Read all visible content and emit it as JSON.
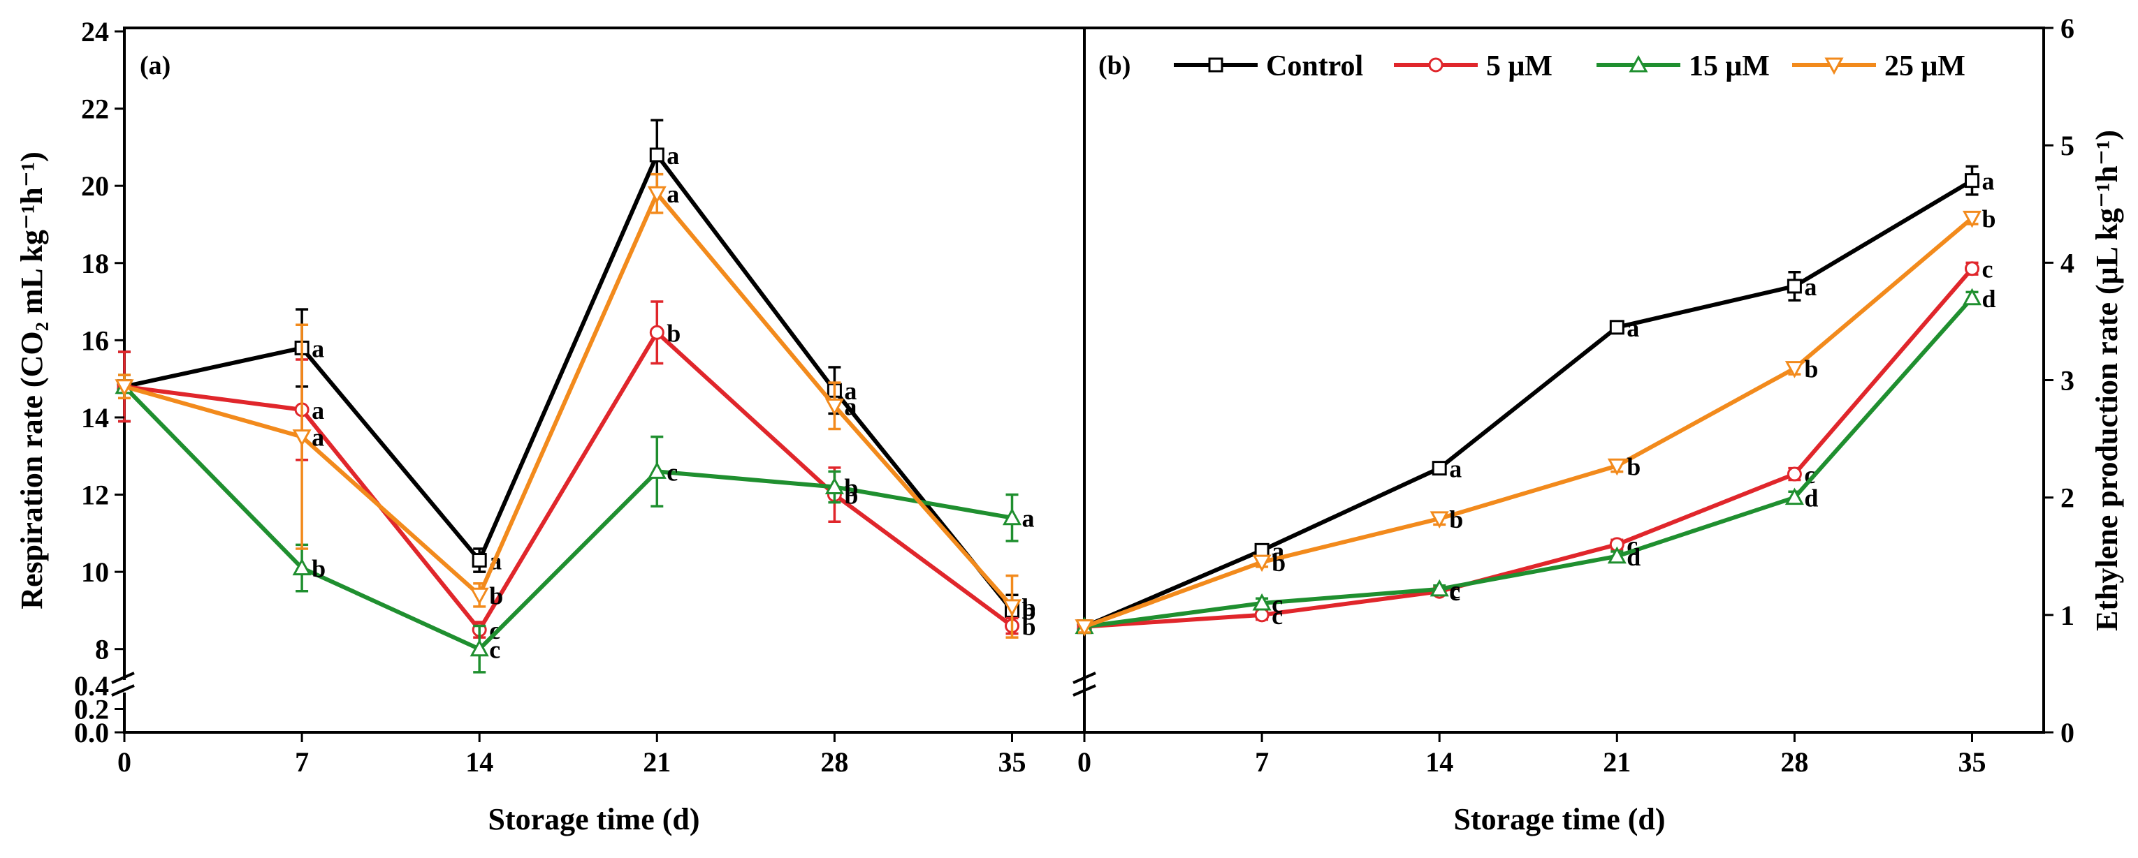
{
  "panels": [
    {
      "label": "(a)",
      "xlabel": "Storage time (d)",
      "ylabel": "Respiration rate (CO₂ mL kg⁻¹h⁻¹)",
      "axis_side": "left",
      "x_ticks": [
        "0",
        "7",
        "14",
        "21",
        "28",
        "35"
      ],
      "y_ticks": [
        "8",
        "10",
        "12",
        "14",
        "16",
        "18",
        "20",
        "22",
        "24"
      ],
      "y_ticks_lower": [
        "0.0",
        "0.2",
        "0.4"
      ]
    },
    {
      "label": "(b)",
      "xlabel": "Storage time (d)",
      "ylabel": "Ethylene production rate (μL kg⁻¹h⁻¹)",
      "axis_side": "right",
      "x_ticks": [
        "0",
        "7",
        "14",
        "21",
        "28",
        "35"
      ],
      "y_ticks": [
        "0",
        "1",
        "2",
        "3",
        "4",
        "5",
        "6"
      ],
      "y_ticks_lower": []
    }
  ],
  "legend": [
    {
      "name": "Control",
      "color": "#000000",
      "marker": "square"
    },
    {
      "name": "5 μM",
      "color": "#e0262b",
      "marker": "circle"
    },
    {
      "name": "15 μM",
      "color": "#1f8f2f",
      "marker": "triangle-up"
    },
    {
      "name": "25 μM",
      "color": "#f28a1c",
      "marker": "triangle-down"
    }
  ],
  "chart_data": [
    {
      "type": "line",
      "title": "(a)",
      "xlabel": "Storage time (d)",
      "ylabel": "Respiration rate (CO₂ mL kg⁻¹h⁻¹)",
      "x": [
        0,
        7,
        14,
        21,
        28,
        35
      ],
      "ylim": [
        7,
        24
      ],
      "axis_break": {
        "lower_range": [
          0,
          0.4
        ],
        "upper_start": 7
      },
      "series": [
        {
          "name": "Control",
          "color": "#000000",
          "marker": "square",
          "values": [
            14.8,
            15.8,
            10.3,
            20.8,
            14.7,
            9.0
          ],
          "errors": [
            0.9,
            1.0,
            0.3,
            0.9,
            0.6,
            0.4
          ],
          "letters": [
            "",
            "a",
            "a",
            "a",
            "a",
            "b"
          ]
        },
        {
          "name": "5 μM",
          "color": "#e0262b",
          "marker": "circle",
          "values": [
            14.8,
            14.2,
            8.5,
            16.2,
            12.0,
            8.6
          ],
          "errors": [
            0.9,
            1.3,
            0.2,
            0.8,
            0.7,
            0.2
          ],
          "letters": [
            "",
            "a",
            "c",
            "b",
            "b",
            "b"
          ]
        },
        {
          "name": "15 μM",
          "color": "#1f8f2f",
          "marker": "triangle-up",
          "values": [
            14.8,
            10.1,
            8.0,
            12.6,
            12.2,
            11.4
          ],
          "errors": [
            0.3,
            0.6,
            0.6,
            0.9,
            0.4,
            0.6
          ],
          "letters": [
            "",
            "b",
            "c",
            "c",
            "b",
            "a"
          ]
        },
        {
          "name": "25 μM",
          "color": "#f28a1c",
          "marker": "triangle-down",
          "values": [
            14.8,
            13.5,
            9.4,
            19.8,
            14.3,
            9.1
          ],
          "errors": [
            0.3,
            2.9,
            0.3,
            0.5,
            0.6,
            0.8
          ],
          "letters": [
            "",
            "a",
            "b",
            "a",
            "a",
            "b"
          ]
        }
      ]
    },
    {
      "type": "line",
      "title": "(b)",
      "xlabel": "Storage time (d)",
      "ylabel": "Ethylene production rate (μL kg⁻¹h⁻¹)",
      "x": [
        0,
        7,
        14,
        21,
        28,
        35
      ],
      "ylim": [
        0,
        6
      ],
      "series": [
        {
          "name": "Control",
          "color": "#000000",
          "marker": "square",
          "values": [
            0.9,
            1.55,
            2.25,
            3.45,
            3.8,
            4.7
          ],
          "errors": [
            0.05,
            0.04,
            0.03,
            0.05,
            0.12,
            0.12
          ],
          "letters": [
            "",
            "a",
            "a",
            "a",
            "a",
            "a"
          ]
        },
        {
          "name": "5 μM",
          "color": "#e0262b",
          "marker": "circle",
          "values": [
            0.9,
            1.0,
            1.2,
            1.6,
            2.2,
            3.95
          ],
          "errors": [
            0.05,
            0.04,
            0.03,
            0.04,
            0.05,
            0.05
          ],
          "letters": [
            "",
            "c",
            "c",
            "c",
            "c",
            "c"
          ]
        },
        {
          "name": "15 μM",
          "color": "#1f8f2f",
          "marker": "triangle-up",
          "values": [
            0.9,
            1.1,
            1.22,
            1.5,
            2.0,
            3.7
          ],
          "errors": [
            0.04,
            0.04,
            0.03,
            0.04,
            0.05,
            0.05
          ],
          "letters": [
            "",
            "c",
            "c",
            "d",
            "d",
            "d"
          ]
        },
        {
          "name": "25 μM",
          "color": "#f28a1c",
          "marker": "triangle-down",
          "values": [
            0.9,
            1.45,
            1.82,
            2.27,
            3.1,
            4.38
          ],
          "errors": [
            0.05,
            0.04,
            0.05,
            0.05,
            0.05,
            0.05
          ],
          "letters": [
            "",
            "b",
            "b",
            "b",
            "b",
            "b"
          ]
        }
      ]
    }
  ]
}
